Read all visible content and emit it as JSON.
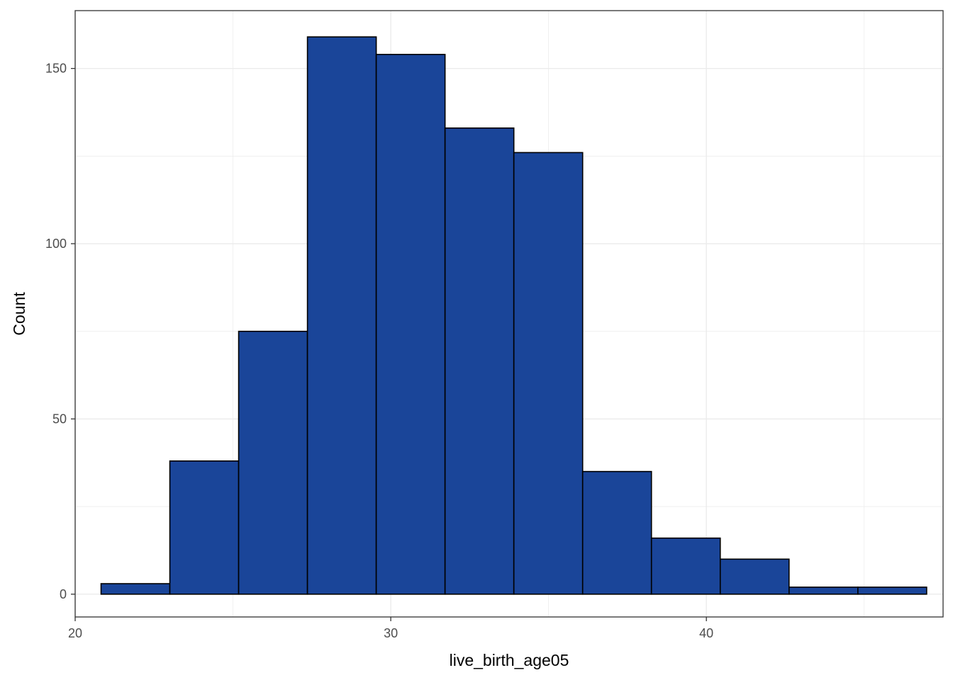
{
  "chart_data": {
    "type": "bar",
    "subtype": "histogram",
    "xlabel": "live_birth_age05",
    "ylabel": "Count",
    "xlim": [
      20.0,
      47.5
    ],
    "ylim": [
      -6.5,
      166.5
    ],
    "x_ticks": [
      20,
      30,
      40
    ],
    "y_ticks": [
      0,
      50,
      100,
      150
    ],
    "grid": true,
    "bins": [
      {
        "x0": 20.82,
        "x1": 23.0,
        "count": 3
      },
      {
        "x0": 23.0,
        "x1": 25.18,
        "count": 38
      },
      {
        "x0": 25.18,
        "x1": 27.36,
        "count": 75
      },
      {
        "x0": 27.36,
        "x1": 29.54,
        "count": 159
      },
      {
        "x0": 29.54,
        "x1": 31.72,
        "count": 154
      },
      {
        "x0": 31.72,
        "x1": 33.9,
        "count": 133
      },
      {
        "x0": 33.9,
        "x1": 36.08,
        "count": 126
      },
      {
        "x0": 36.08,
        "x1": 38.26,
        "count": 35
      },
      {
        "x0": 38.26,
        "x1": 40.44,
        "count": 16
      },
      {
        "x0": 40.44,
        "x1": 42.62,
        "count": 10
      },
      {
        "x0": 42.62,
        "x1": 44.8,
        "count": 2
      },
      {
        "x0": 44.8,
        "x1": 46.98,
        "count": 2
      }
    ],
    "colors": {
      "fill": "#1A4599",
      "stroke": "#000000",
      "grid": "#EBEBEB",
      "panel_border": "#333333"
    }
  }
}
